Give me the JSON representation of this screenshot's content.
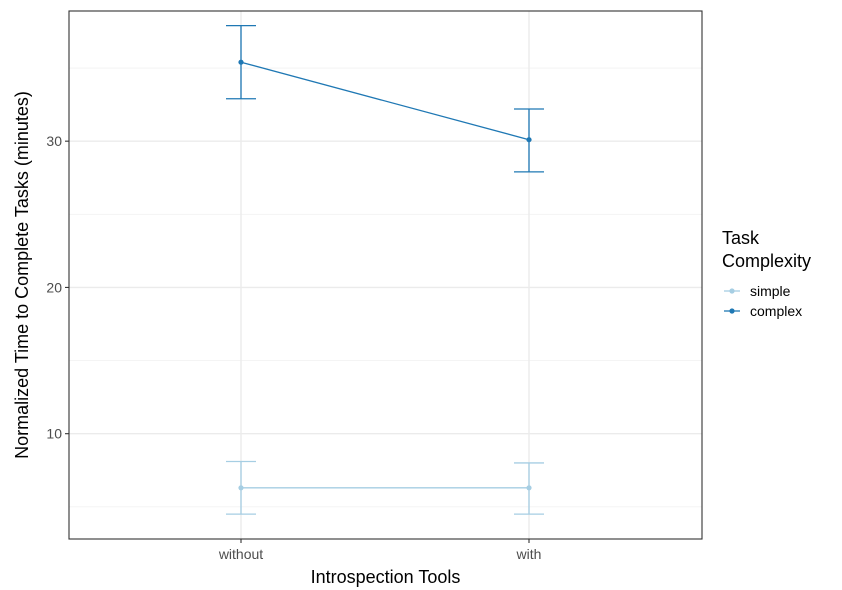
{
  "chart_data": {
    "type": "line",
    "xlabel": "Introspection Tools",
    "ylabel": "Normalized Time to Complete Tasks (minutes)",
    "categories": [
      "without",
      "with"
    ],
    "y_ticks": [
      10,
      20,
      30
    ],
    "ylim": [
      2.8,
      38.9
    ],
    "grid": true,
    "legend_title_lines": [
      "Task",
      "Complexity"
    ],
    "legend_position": "right",
    "series": [
      {
        "name": "simple",
        "color": "#a6cee3",
        "values": [
          6.3,
          6.3
        ],
        "lower": [
          4.5,
          4.5
        ],
        "upper": [
          8.1,
          8.0
        ]
      },
      {
        "name": "complex",
        "color": "#1f78b4",
        "values": [
          35.4,
          30.1
        ],
        "lower": [
          32.9,
          27.9
        ],
        "upper": [
          37.9,
          32.2
        ]
      }
    ]
  }
}
